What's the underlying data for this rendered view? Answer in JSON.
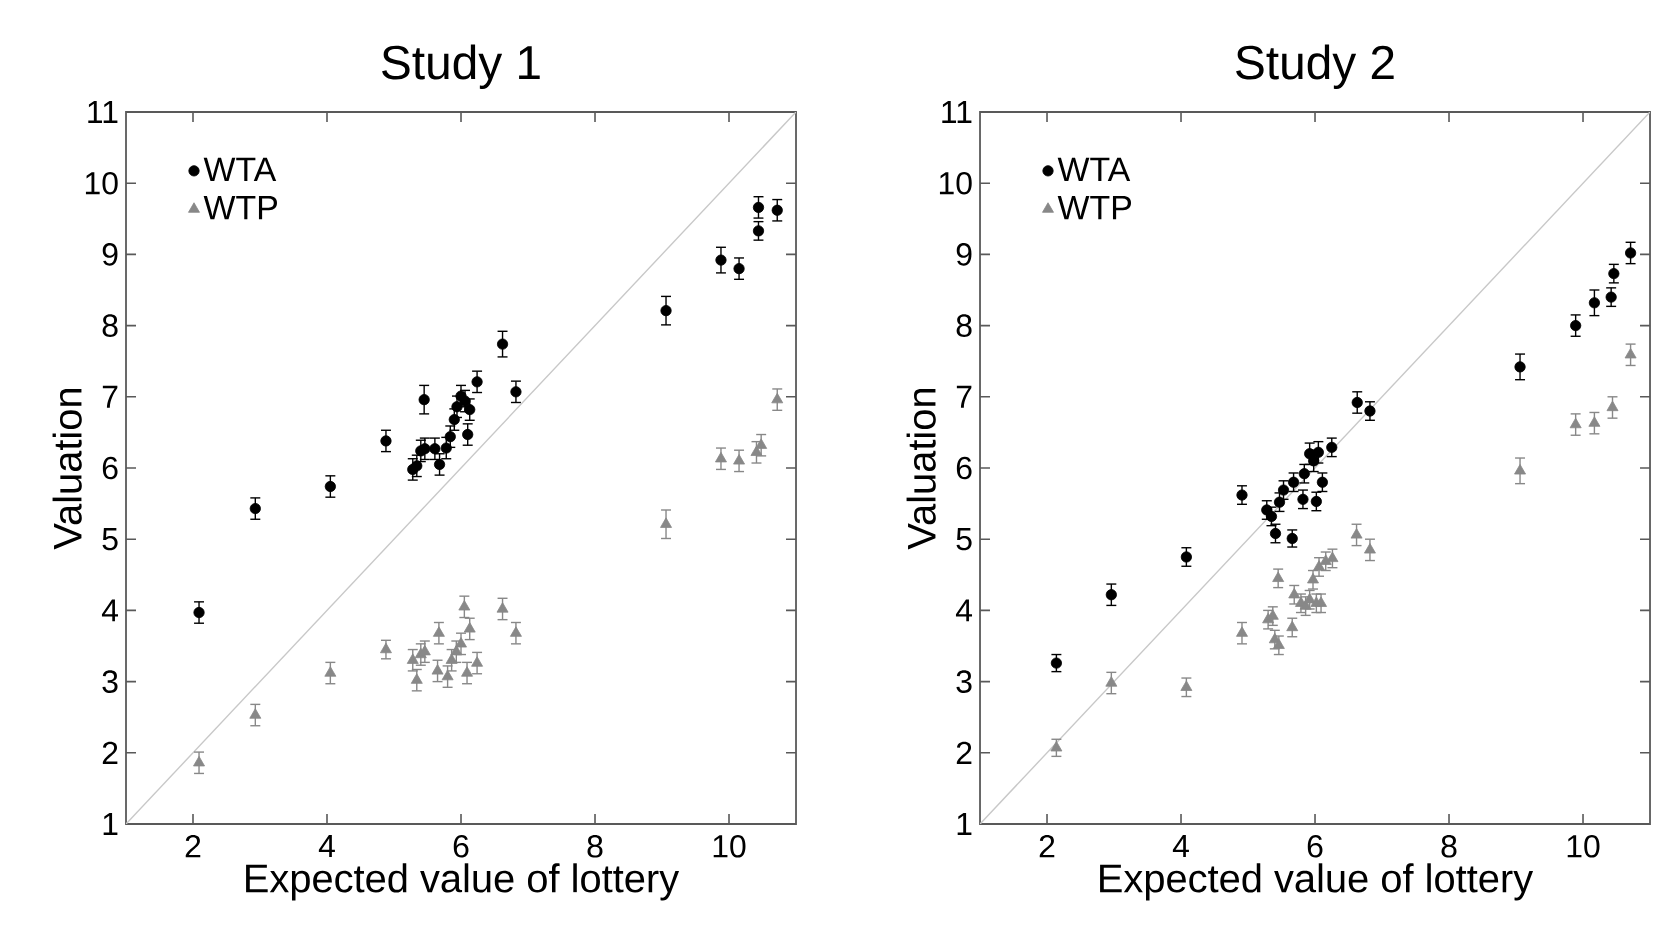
{
  "chart_data": [
    {
      "type": "scatter",
      "title": "Study 1",
      "xlabel": "Expected value of lottery",
      "ylabel": "Valuation",
      "xlim": [
        1,
        11
      ],
      "ylim": [
        1,
        11
      ],
      "xticks": [
        2,
        4,
        6,
        8,
        10
      ],
      "yticks": [
        1,
        2,
        3,
        4,
        5,
        6,
        7,
        8,
        9,
        10,
        11
      ],
      "legend": "top left",
      "series": [
        {
          "type": "line",
          "color": "#c8c8c8",
          "marker": "none",
          "x": [
            1,
            11
          ],
          "values": [
            1,
            11
          ]
        },
        {
          "name": "WTA",
          "color": "#000000",
          "marker": "circle",
          "x": [
            2.09,
            2.93,
            4.05,
            4.88,
            5.28,
            5.34,
            5.4,
            5.46,
            5.45,
            5.61,
            5.68,
            5.78,
            5.84,
            5.9,
            5.94,
            6.0,
            6.06,
            6.1,
            6.13,
            6.24,
            6.62,
            6.82,
            9.06,
            9.88,
            10.15,
            10.44,
            10.44,
            10.72
          ],
          "values": [
            3.97,
            5.43,
            5.74,
            6.38,
            5.98,
            6.03,
            6.24,
            6.27,
            6.96,
            6.27,
            6.05,
            6.28,
            6.44,
            6.68,
            6.86,
            7.01,
            6.94,
            6.47,
            6.82,
            7.21,
            7.74,
            7.07,
            8.21,
            8.92,
            8.8,
            9.33,
            9.66,
            9.62
          ],
          "errors": [
            0.15,
            0.15,
            0.15,
            0.15,
            0.15,
            0.15,
            0.15,
            0.15,
            0.2,
            0.15,
            0.15,
            0.15,
            0.15,
            0.15,
            0.15,
            0.15,
            0.15,
            0.15,
            0.15,
            0.15,
            0.18,
            0.15,
            0.2,
            0.18,
            0.15,
            0.13,
            0.15,
            0.15
          ]
        },
        {
          "name": "WTP",
          "color": "#888888",
          "marker": "triangle",
          "x": [
            2.09,
            2.93,
            4.05,
            4.88,
            5.28,
            5.34,
            5.4,
            5.46,
            5.65,
            5.67,
            5.8,
            5.86,
            5.93,
            6.0,
            6.05,
            6.09,
            6.13,
            6.24,
            6.62,
            6.82,
            9.06,
            9.88,
            10.15,
            10.41,
            10.48,
            10.72
          ],
          "values": [
            1.86,
            2.53,
            3.12,
            3.45,
            3.3,
            3.02,
            3.38,
            3.42,
            3.15,
            3.68,
            3.07,
            3.3,
            3.42,
            3.53,
            4.05,
            3.12,
            3.74,
            3.26,
            4.02,
            3.68,
            5.21,
            6.13,
            6.1,
            6.22,
            6.32,
            6.96
          ],
          "errors": [
            0.15,
            0.15,
            0.15,
            0.13,
            0.15,
            0.15,
            0.15,
            0.15,
            0.15,
            0.15,
            0.15,
            0.15,
            0.15,
            0.15,
            0.15,
            0.15,
            0.15,
            0.15,
            0.15,
            0.15,
            0.2,
            0.15,
            0.15,
            0.15,
            0.15,
            0.15
          ]
        }
      ]
    },
    {
      "type": "scatter",
      "title": "Study 2",
      "xlabel": "Expected value of lottery",
      "ylabel": "Valuation",
      "xlim": [
        1,
        11
      ],
      "ylim": [
        1,
        11
      ],
      "xticks": [
        2,
        4,
        6,
        8,
        10
      ],
      "yticks": [
        1,
        2,
        3,
        4,
        5,
        6,
        7,
        8,
        9,
        10,
        11
      ],
      "legend": "top left",
      "series": [
        {
          "type": "line",
          "color": "#c8c8c8",
          "marker": "none",
          "x": [
            1,
            11
          ],
          "values": [
            1,
            11
          ]
        },
        {
          "name": "WTA",
          "color": "#000000",
          "marker": "circle",
          "x": [
            2.14,
            2.96,
            4.08,
            4.91,
            5.28,
            5.35,
            5.41,
            5.47,
            5.53,
            5.66,
            5.82,
            6.02,
            5.68,
            5.84,
            5.92,
            5.98,
            6.05,
            6.11,
            6.25,
            6.63,
            6.82,
            9.06,
            9.89,
            10.17,
            10.42,
            10.46,
            10.71
          ],
          "values": [
            3.26,
            4.22,
            4.75,
            5.62,
            5.41,
            5.32,
            5.08,
            5.52,
            5.69,
            5.01,
            5.56,
            5.53,
            5.8,
            5.92,
            6.2,
            6.1,
            6.22,
            5.8,
            6.29,
            6.92,
            6.8,
            7.42,
            8.0,
            8.32,
            8.4,
            8.73,
            9.02
          ],
          "errors": [
            0.12,
            0.15,
            0.13,
            0.13,
            0.13,
            0.13,
            0.13,
            0.13,
            0.13,
            0.12,
            0.13,
            0.13,
            0.13,
            0.13,
            0.15,
            0.15,
            0.15,
            0.13,
            0.13,
            0.15,
            0.13,
            0.18,
            0.15,
            0.18,
            0.13,
            0.13,
            0.15
          ]
        },
        {
          "name": "WTP",
          "color": "#888888",
          "marker": "triangle",
          "x": [
            2.14,
            2.96,
            4.08,
            4.91,
            5.3,
            5.37,
            5.4,
            5.46,
            5.45,
            5.66,
            5.69,
            5.79,
            5.86,
            5.92,
            5.97,
            6.02,
            6.09,
            6.06,
            6.16,
            6.26,
            6.62,
            6.82,
            9.06,
            9.89,
            10.17,
            10.44,
            10.71
          ],
          "values": [
            2.07,
            2.98,
            2.92,
            3.68,
            3.87,
            3.92,
            3.59,
            3.51,
            4.45,
            3.76,
            4.22,
            4.1,
            4.06,
            4.15,
            4.43,
            4.1,
            4.1,
            4.61,
            4.69,
            4.73,
            5.06,
            4.85,
            5.96,
            6.61,
            6.63,
            6.85,
            7.59
          ],
          "errors": [
            0.12,
            0.15,
            0.13,
            0.15,
            0.13,
            0.13,
            0.13,
            0.13,
            0.13,
            0.13,
            0.13,
            0.13,
            0.13,
            0.13,
            0.13,
            0.13,
            0.13,
            0.13,
            0.13,
            0.13,
            0.15,
            0.15,
            0.18,
            0.15,
            0.15,
            0.15,
            0.15
          ]
        }
      ]
    }
  ]
}
